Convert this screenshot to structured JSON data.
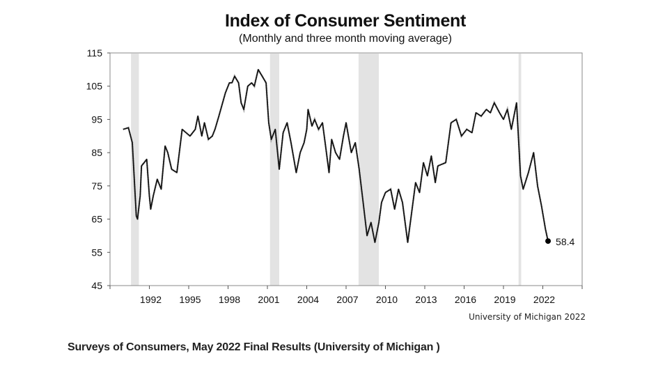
{
  "chart_data": {
    "type": "line",
    "title": "Index of Consumer Sentiment",
    "subtitle": "(Monthly and three month moving average)",
    "xlabel": "",
    "ylabel": "",
    "xlim": [
      1989,
      2025
    ],
    "ylim": [
      45,
      115
    ],
    "x_ticks": [
      1992,
      1995,
      1998,
      2001,
      2004,
      2007,
      2010,
      2013,
      2016,
      2019,
      2022
    ],
    "y_ticks": [
      45,
      55,
      65,
      75,
      85,
      95,
      105,
      115
    ],
    "grid": false,
    "legend": "none",
    "recession_shading": [
      [
        1990.6,
        1991.2
      ],
      [
        2001.2,
        2001.9
      ],
      [
        2007.95,
        2009.5
      ],
      [
        2020.15,
        2020.35
      ]
    ],
    "series": [
      {
        "x": [
          1990.0,
          1990.4,
          1990.7,
          1991.0,
          1991.1,
          1991.3,
          1991.4,
          1991.6,
          1991.8,
          1992.0,
          1992.1,
          1992.3,
          1992.6,
          1992.9,
          1993.2,
          1993.4,
          1993.7,
          1994.1,
          1994.5,
          1994.8,
          1995.1,
          1995.5,
          1995.7,
          1996.0,
          1996.2,
          1996.5,
          1996.8,
          1997.0,
          1997.3,
          1997.8,
          1998.1,
          1998.3,
          1998.5,
          1998.8,
          1999.0,
          1999.2,
          1999.5,
          1999.8,
          2000.0,
          2000.3,
          2000.6,
          2000.9,
          2001.1,
          2001.3,
          2001.6,
          2001.9,
          2002.2,
          2002.5,
          2002.8,
          2003.2,
          2003.5,
          2003.8,
          2004.0,
          2004.1,
          2004.4,
          2004.6,
          2004.9,
          2005.2,
          2005.4,
          2005.7,
          2005.9,
          2006.2,
          2006.5,
          2006.8,
          2007.0,
          2007.4,
          2007.7,
          2008.0,
          2008.3,
          2008.6,
          2008.9,
          2009.2,
          2009.5,
          2009.7,
          2010.0,
          2010.4,
          2010.7,
          2011.0,
          2011.3,
          2011.7,
          2011.9,
          2012.3,
          2012.6,
          2012.9,
          2013.2,
          2013.5,
          2013.8,
          2014.0,
          2014.6,
          2015.0,
          2015.4,
          2015.8,
          2016.2,
          2016.6,
          2016.9,
          2017.3,
          2017.7,
          2018.0,
          2018.3,
          2018.7,
          2019.0,
          2019.3,
          2019.6,
          2020.0,
          2020.3,
          2020.5,
          2020.9,
          2021.3,
          2021.6,
          2021.9,
          2022.2,
          2022.4
        ],
        "y": [
          92,
          92.5,
          88,
          66,
          65,
          72,
          81,
          82,
          83,
          72,
          68,
          72,
          77,
          74,
          87,
          85,
          80,
          79,
          92,
          91,
          90,
          92,
          96,
          90,
          94,
          89,
          90,
          92,
          96,
          103,
          106,
          106,
          108,
          106,
          100,
          98,
          105,
          106,
          105,
          110,
          108,
          106,
          94,
          89,
          92,
          80,
          91,
          94,
          88,
          79,
          85,
          88,
          92,
          98,
          93,
          95,
          92,
          94,
          88,
          79,
          89,
          85,
          83,
          90,
          94,
          85,
          88,
          80,
          70,
          60,
          64,
          58,
          64,
          70,
          73,
          74,
          68,
          74,
          70,
          58,
          64,
          76,
          73,
          82,
          78,
          84,
          76,
          81,
          82,
          94,
          95,
          90,
          92,
          91,
          97,
          96,
          98,
          97,
          100,
          97,
          95,
          98,
          92,
          100,
          78,
          74,
          79,
          85,
          75,
          69,
          62,
          58.4
        ]
      }
    ],
    "annotations": [
      {
        "x": 2022.4,
        "y": 58.4,
        "label": "58.4"
      }
    ],
    "source": "University of Michigan 2022"
  },
  "caption": "Surveys of Consumers, May 2022 Final Results (University of Michigan  )",
  "colors": {
    "line": "#111111",
    "recession": "#e3e3e3",
    "axis": "#555555"
  }
}
